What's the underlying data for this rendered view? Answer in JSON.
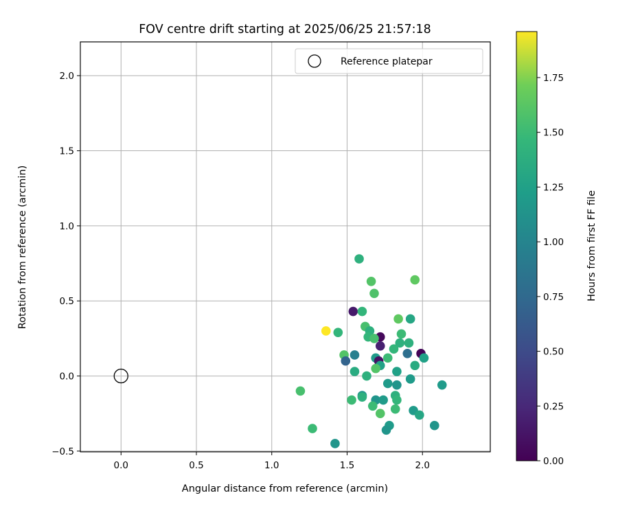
{
  "chart_data": {
    "type": "scatter",
    "title": "FOV centre drift starting at 2025/06/25 21:57:18",
    "xlabel": "Angular distance from reference (arcmin)",
    "ylabel": "Rotation from reference (arcmin)",
    "xlim": [
      -0.27,
      2.45
    ],
    "ylim": [
      -0.505,
      2.225
    ],
    "xticks": [
      0.0,
      0.5,
      1.0,
      1.5,
      2.0
    ],
    "xtick_labels": [
      "0.0",
      "0.5",
      "1.0",
      "1.5",
      "2.0"
    ],
    "yticks": [
      -0.5,
      0.0,
      0.5,
      1.0,
      1.5,
      2.0
    ],
    "ytick_labels": [
      "−0.5",
      "0.0",
      "0.5",
      "1.0",
      "1.5",
      "2.0"
    ],
    "grid": true,
    "legend": {
      "label": "Reference platepar",
      "location": "upper right"
    },
    "reference_point": {
      "x": 0.0,
      "y": 0.0
    },
    "colorbar": {
      "label": "Hours from first FF file",
      "colormap": "viridis",
      "range": [
        0.0,
        1.96
      ],
      "ticks": [
        0.0,
        0.25,
        0.5,
        0.75,
        1.0,
        1.25,
        1.5,
        1.75
      ],
      "tick_labels": [
        "0.00",
        "0.25",
        "0.50",
        "0.75",
        "1.00",
        "1.25",
        "1.50",
        "1.75"
      ]
    },
    "points": [
      {
        "x": 1.58,
        "y": 0.78,
        "c": 1.4
      },
      {
        "x": 1.66,
        "y": 0.63,
        "c": 1.6
      },
      {
        "x": 1.95,
        "y": 0.64,
        "c": 1.65
      },
      {
        "x": 1.68,
        "y": 0.55,
        "c": 1.58
      },
      {
        "x": 1.54,
        "y": 0.43,
        "c": 0.15
      },
      {
        "x": 1.6,
        "y": 0.43,
        "c": 1.45
      },
      {
        "x": 1.84,
        "y": 0.38,
        "c": 1.65
      },
      {
        "x": 1.92,
        "y": 0.38,
        "c": 1.3
      },
      {
        "x": 1.62,
        "y": 0.33,
        "c": 1.55
      },
      {
        "x": 1.36,
        "y": 0.3,
        "c": 1.96
      },
      {
        "x": 1.44,
        "y": 0.29,
        "c": 1.45
      },
      {
        "x": 1.65,
        "y": 0.3,
        "c": 1.4
      },
      {
        "x": 1.72,
        "y": 0.26,
        "c": 0.05
      },
      {
        "x": 1.64,
        "y": 0.26,
        "c": 1.45
      },
      {
        "x": 1.68,
        "y": 0.25,
        "c": 1.55
      },
      {
        "x": 1.86,
        "y": 0.28,
        "c": 1.5
      },
      {
        "x": 1.85,
        "y": 0.22,
        "c": 1.4
      },
      {
        "x": 1.91,
        "y": 0.22,
        "c": 1.4
      },
      {
        "x": 1.72,
        "y": 0.2,
        "c": 0.2
      },
      {
        "x": 1.81,
        "y": 0.18,
        "c": 1.45
      },
      {
        "x": 1.99,
        "y": 0.15,
        "c": 0.02
      },
      {
        "x": 1.9,
        "y": 0.15,
        "c": 0.8
      },
      {
        "x": 1.48,
        "y": 0.14,
        "c": 1.6
      },
      {
        "x": 1.55,
        "y": 0.14,
        "c": 0.95
      },
      {
        "x": 1.69,
        "y": 0.12,
        "c": 1.2
      },
      {
        "x": 1.71,
        "y": 0.1,
        "c": 0.1
      },
      {
        "x": 1.77,
        "y": 0.12,
        "c": 1.5
      },
      {
        "x": 2.01,
        "y": 0.12,
        "c": 1.25
      },
      {
        "x": 1.49,
        "y": 0.1,
        "c": 0.7
      },
      {
        "x": 1.72,
        "y": 0.07,
        "c": 1.25
      },
      {
        "x": 1.95,
        "y": 0.07,
        "c": 1.35
      },
      {
        "x": 1.69,
        "y": 0.05,
        "c": 1.6
      },
      {
        "x": 1.55,
        "y": 0.03,
        "c": 1.35
      },
      {
        "x": 1.83,
        "y": 0.03,
        "c": 1.25
      },
      {
        "x": 1.63,
        "y": 0.0,
        "c": 1.4
      },
      {
        "x": 1.92,
        "y": -0.02,
        "c": 1.2
      },
      {
        "x": 1.77,
        "y": -0.05,
        "c": 1.2
      },
      {
        "x": 1.83,
        "y": -0.06,
        "c": 1.15
      },
      {
        "x": 2.13,
        "y": -0.06,
        "c": 1.2
      },
      {
        "x": 1.19,
        "y": -0.1,
        "c": 1.55
      },
      {
        "x": 1.6,
        "y": -0.13,
        "c": 1.15
      },
      {
        "x": 1.6,
        "y": -0.14,
        "c": 1.4
      },
      {
        "x": 1.82,
        "y": -0.13,
        "c": 1.4
      },
      {
        "x": 1.69,
        "y": -0.16,
        "c": 1.15
      },
      {
        "x": 1.74,
        "y": -0.16,
        "c": 1.2
      },
      {
        "x": 1.83,
        "y": -0.16,
        "c": 1.45
      },
      {
        "x": 1.53,
        "y": -0.16,
        "c": 1.5
      },
      {
        "x": 1.67,
        "y": -0.2,
        "c": 1.5
      },
      {
        "x": 1.82,
        "y": -0.22,
        "c": 1.5
      },
      {
        "x": 1.94,
        "y": -0.23,
        "c": 1.2
      },
      {
        "x": 1.72,
        "y": -0.25,
        "c": 1.6
      },
      {
        "x": 1.98,
        "y": -0.26,
        "c": 1.3
      },
      {
        "x": 2.08,
        "y": -0.33,
        "c": 1.15
      },
      {
        "x": 1.78,
        "y": -0.33,
        "c": 1.2
      },
      {
        "x": 1.76,
        "y": -0.36,
        "c": 1.15
      },
      {
        "x": 1.27,
        "y": -0.35,
        "c": 1.5
      },
      {
        "x": 1.42,
        "y": -0.45,
        "c": 1.15
      }
    ]
  }
}
